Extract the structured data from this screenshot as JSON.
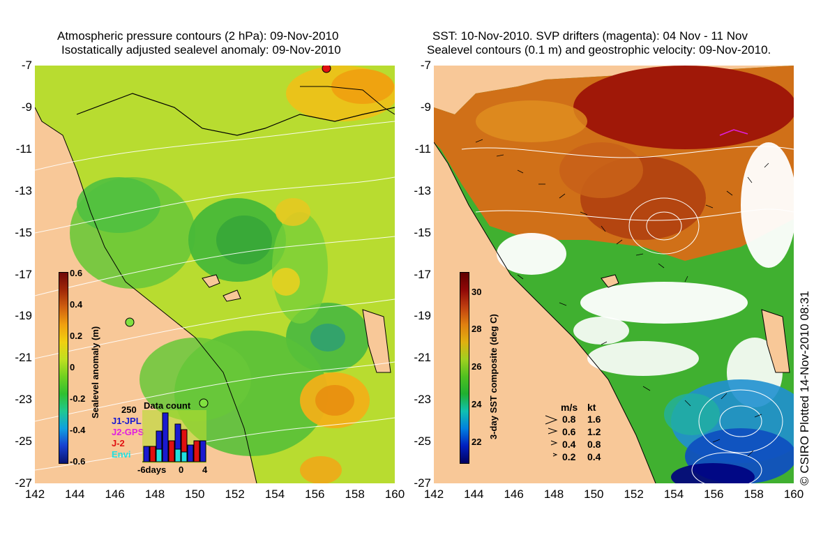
{
  "left": {
    "title_line1": "Atmospheric pressure contours (2 hPa): 09-Nov-2010",
    "title_line2": "Isostatically adjusted sealevel anomaly: 09-Nov-2010",
    "colorbar": {
      "label": "Sealevel anomaly (m)",
      "ticks": [
        "0.6",
        "0.4",
        "0.2",
        "0",
        "-0.2",
        "-0.4",
        "-0.6"
      ],
      "colors": [
        "#0a1470",
        "#1840d0",
        "#10a0e0",
        "#20c890",
        "#30c030",
        "#70d020",
        "#c0e020",
        "#f0d010",
        "#f0a010",
        "#d06010",
        "#a02808",
        "#700808"
      ]
    },
    "data_count": {
      "title": "Data count",
      "max_label": "250",
      "satellites": [
        {
          "name": "J1-JPL",
          "color": "#1a1ad0"
        },
        {
          "name": "J2-GPS",
          "color": "#e020e0"
        },
        {
          "name": "J-2",
          "color": "#e01010"
        },
        {
          "name": "Envi",
          "color": "#20e0e0"
        }
      ],
      "x_labels": [
        "-6days",
        "0",
        "4"
      ]
    }
  },
  "right": {
    "title_line1": "SST: 10-Nov-2010. SVP drifters (magenta): 04 Nov - 11 Nov",
    "title_line2": "Sealevel contours (0.1 m) and geostrophic velocity: 09-Nov-2010.",
    "colorbar": {
      "label": "3-day SST composite (deg C)",
      "ticks": [
        "30",
        "28",
        "26",
        "24",
        "22"
      ],
      "colors": [
        "#000060",
        "#0020c0",
        "#0080e0",
        "#10c0b0",
        "#20b030",
        "#50c020",
        "#a0d020",
        "#e0b010",
        "#e08010",
        "#c04010",
        "#900808",
        "#600000"
      ]
    },
    "velocity_legend": {
      "header_ms": "m/s",
      "header_kt": "kt",
      "rows": [
        {
          "ms": "0.8",
          "kt": "1.6"
        },
        {
          "ms": "0.6",
          "kt": "1.2"
        },
        {
          "ms": "0.4",
          "kt": "0.8"
        },
        {
          "ms": "0.2",
          "kt": "0.4"
        }
      ]
    }
  },
  "axes": {
    "lat_labels": [
      "-7",
      "-9",
      "-11",
      "-13",
      "-15",
      "-17",
      "-19",
      "-21",
      "-23",
      "-25",
      "-27"
    ],
    "lon_labels": [
      "142",
      "144",
      "146",
      "148",
      "150",
      "152",
      "154",
      "156",
      "158",
      "160"
    ]
  },
  "credit": "© CSIRO Plotted 14-Nov-2010 08:31",
  "colors": {
    "land": "#f8c898",
    "slope_green": "#50c030",
    "slope_yellow": "#d0e020",
    "sst_red": "#a01808",
    "sst_orange": "#d07018",
    "sst_green": "#40b030",
    "sst_blue": "#2070e0"
  }
}
